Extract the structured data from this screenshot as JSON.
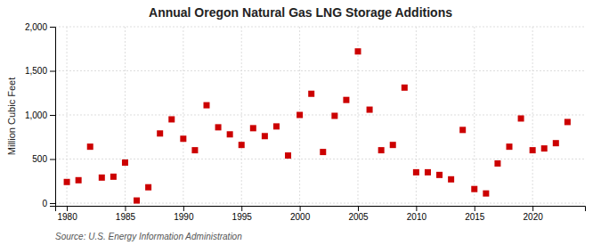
{
  "chart_data": {
    "type": "scatter",
    "title": "Annual Oregon Natural Gas LNG Storage Additions",
    "ylabel": "Million Cubic Feet",
    "annotations": [
      "Source: U.S. Energy Information Administration"
    ],
    "color": "#cc0000",
    "marker": "square",
    "grid": true,
    "xlim": [
      1979,
      2024.5
    ],
    "xticks": [
      1980,
      1985,
      1990,
      1995,
      2000,
      2005,
      2010,
      2015,
      2020
    ],
    "ylim": [
      -30,
      2000
    ],
    "yticks": [
      0,
      500,
      {
        "value": 1000,
        "label": "1,000"
      },
      {
        "value": 1500,
        "label": "1,500"
      },
      {
        "value": 2000,
        "label": "2,000"
      }
    ],
    "x": [
      1980,
      1981,
      1982,
      1983,
      1984,
      1985,
      1986,
      1987,
      1988,
      1989,
      1990,
      1991,
      1992,
      1993,
      1994,
      1995,
      1996,
      1997,
      1998,
      1999,
      2000,
      2001,
      2002,
      2003,
      2004,
      2005,
      2006,
      2007,
      2008,
      2009,
      2010,
      2011,
      2012,
      2013,
      2014,
      2015,
      2016,
      2017,
      2018,
      2019,
      2020,
      2021,
      2022,
      2023
    ],
    "values": [
      240,
      260,
      640,
      290,
      300,
      460,
      30,
      180,
      790,
      950,
      730,
      600,
      1110,
      860,
      780,
      660,
      850,
      760,
      870,
      540,
      1000,
      1240,
      580,
      990,
      1170,
      1720,
      1060,
      600,
      660,
      1310,
      350,
      350,
      320,
      270,
      830,
      160,
      110,
      450,
      640,
      960,
      600,
      620,
      680,
      920
    ]
  }
}
